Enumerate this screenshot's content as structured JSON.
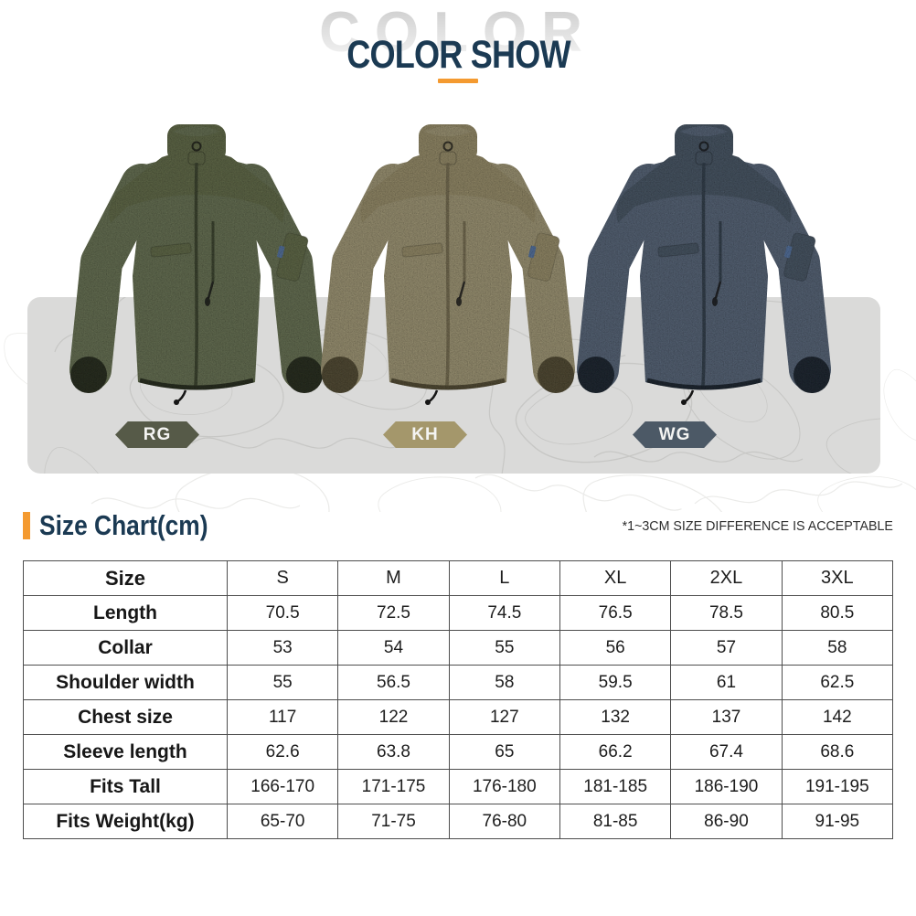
{
  "hero": {
    "watermark": "COLOR",
    "title": "COLOR SHOW"
  },
  "showcase": {
    "panel_bg": "#dadad9",
    "topo_line_color": "#c7c7c5",
    "variants": [
      {
        "code": "RG",
        "badge_color": "#565a48",
        "body": "#6e785a",
        "panel": "#68714f",
        "trim": "#2f3526",
        "dark": "#434b36"
      },
      {
        "code": "KH",
        "badge_color": "#a4976b",
        "body": "#a69d7c",
        "panel": "#9d9370",
        "trim": "#59523b",
        "dark": "#7d7458"
      },
      {
        "code": "WG",
        "badge_color": "#4c5966",
        "body": "#5e6c7f",
        "panel": "#4f5d6c",
        "trim": "#242d38",
        "dark": "#3a4653"
      }
    ]
  },
  "size_chart": {
    "heading": "Size Chart(cm)",
    "note": "*1~3CM SIZE DIFFERENCE IS ACCEPTABLE",
    "accent_navy": "#1b3a53",
    "accent_orange": "#f49a30",
    "columns": [
      "Size",
      "S",
      "M",
      "L",
      "XL",
      "2XL",
      "3XL"
    ],
    "rows": [
      {
        "label": "Length",
        "values": [
          "70.5",
          "72.5",
          "74.5",
          "76.5",
          "78.5",
          "80.5"
        ]
      },
      {
        "label": "Collar",
        "values": [
          "53",
          "54",
          "55",
          "56",
          "57",
          "58"
        ]
      },
      {
        "label": "Shoulder width",
        "values": [
          "55",
          "56.5",
          "58",
          "59.5",
          "61",
          "62.5"
        ]
      },
      {
        "label": "Chest size",
        "values": [
          "117",
          "122",
          "127",
          "132",
          "137",
          "142"
        ]
      },
      {
        "label": "Sleeve length",
        "values": [
          "62.6",
          "63.8",
          "65",
          "66.2",
          "67.4",
          "68.6"
        ]
      },
      {
        "label": "Fits Tall",
        "values": [
          "166-170",
          "171-175",
          "176-180",
          "181-185",
          "186-190",
          "191-195"
        ]
      },
      {
        "label": "Fits Weight(kg)",
        "values": [
          "65-70",
          "71-75",
          "76-80",
          "81-85",
          "86-90",
          "91-95"
        ]
      }
    ]
  }
}
